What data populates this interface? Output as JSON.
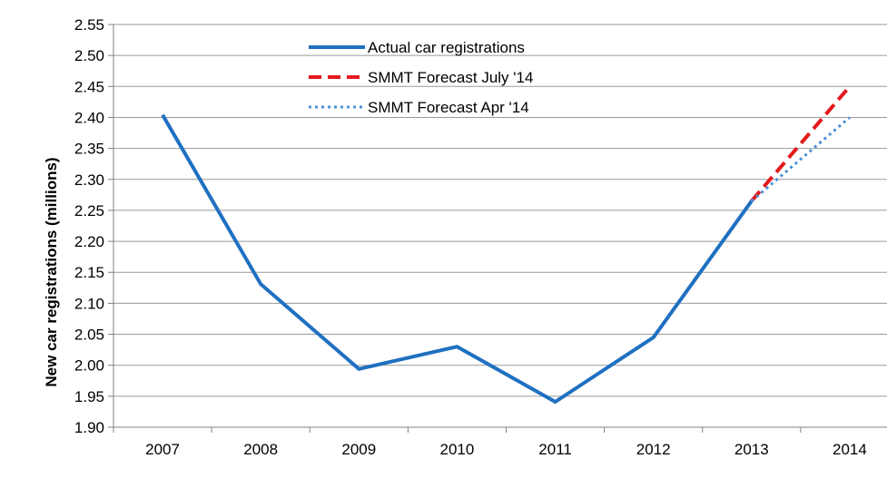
{
  "chart_data": {
    "type": "line",
    "title": "",
    "xlabel": "",
    "ylabel": "New car registrations (millions)",
    "categories": [
      "2007",
      "2008",
      "2009",
      "2010",
      "2011",
      "2012",
      "2013",
      "2014"
    ],
    "ylim": [
      1.9,
      2.55
    ],
    "yticks": [
      1.9,
      1.95,
      2.0,
      2.05,
      2.1,
      2.15,
      2.2,
      2.25,
      2.3,
      2.35,
      2.4,
      2.45,
      2.5,
      2.55
    ],
    "ytick_labels": [
      "1.90",
      "1.95",
      "2.00",
      "2.05",
      "2.10",
      "2.15",
      "2.20",
      "2.25",
      "2.30",
      "2.35",
      "2.40",
      "2.45",
      "2.50",
      "2.55"
    ],
    "grid": true,
    "legend_position": "top-center",
    "series": [
      {
        "name": "Actual car registrations",
        "x": [
          "2007",
          "2008",
          "2009",
          "2010",
          "2011",
          "2012",
          "2013"
        ],
        "values": [
          2.404,
          2.131,
          1.994,
          2.03,
          1.941,
          2.045,
          2.265
        ],
        "color": "#1F70C1",
        "style": "solid"
      },
      {
        "name": "SMMT Forecast July '14",
        "x": [
          "2013",
          "2014"
        ],
        "values": [
          2.265,
          2.45
        ],
        "color": "#E41A1C",
        "style": "dashed"
      },
      {
        "name": "SMMT Forecast Apr '14",
        "x": [
          "2013",
          "2014"
        ],
        "values": [
          2.265,
          2.4
        ],
        "color": "#4A90D9",
        "style": "dotted"
      }
    ]
  }
}
